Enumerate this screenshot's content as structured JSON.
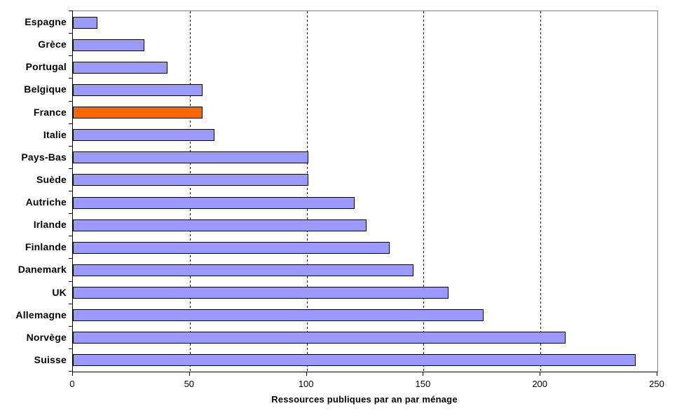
{
  "chart_data": {
    "type": "bar",
    "orientation": "horizontal",
    "title": "",
    "xlabel": "Ressources publiques par an par ménage",
    "ylabel": "",
    "categories": [
      "Espagne",
      "Grèce",
      "Portugal",
      "Belgique",
      "France",
      "Italie",
      "Pays-Bas",
      "Suède",
      "Autriche",
      "Irlande",
      "Finlande",
      "Danemark",
      "UK",
      "Allemagne",
      "Norvège",
      "Suisse"
    ],
    "values": [
      10,
      30,
      40,
      55,
      55,
      60,
      100,
      100,
      120,
      125,
      135,
      145,
      160,
      175,
      210,
      240
    ],
    "highlight_category": "France",
    "xlim": [
      0,
      250
    ],
    "xticks": [
      0,
      50,
      100,
      150,
      200,
      250
    ],
    "grid": "vertical dashed lines at 50, 100, 150, 200",
    "legend": "none",
    "colors": {
      "bar_fill": "#9999FF",
      "highlight_fill": "#FF6600",
      "bar_border": "#000000",
      "frame_gray": "#808080",
      "axis_black": "#000000",
      "background": "#FFFFFF"
    }
  }
}
